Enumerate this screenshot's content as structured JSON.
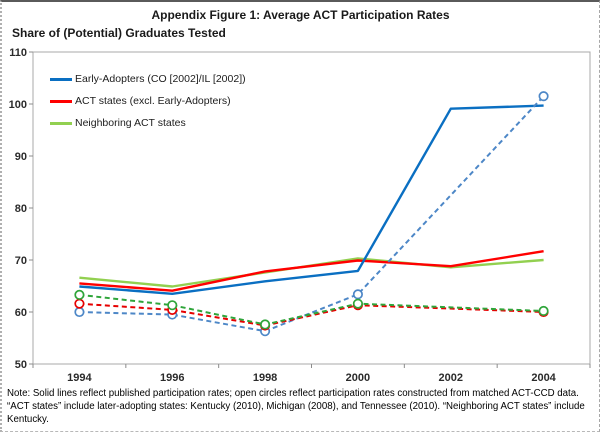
{
  "figure": {
    "title": "Appendix Figure 1: Average ACT Participation Rates",
    "axis_caption": "Share of (Potential) Graduates Tested",
    "notes": [
      "Note: Solid lines reflect published participation rates; open circles reflect participation rates constructed from matched ACT-CCD data.",
      "“ACT states” include later-adopting states: Kentucky (2010), Michigan (2008), and Tennessee (2010). “Neighboring ACT states” include",
      "Kentucky."
    ]
  },
  "chart_data": {
    "type": "line",
    "title": "Appendix Figure 1: Average ACT Participation Rates",
    "ylabel": "Share of (Potential) Graduates Tested",
    "x_categories": [
      "1994",
      "1996",
      "1998",
      "2000",
      "2002",
      "2004"
    ],
    "ylim": [
      50,
      110
    ],
    "yticks": [
      50,
      60,
      70,
      80,
      90,
      100,
      110
    ],
    "grid": false,
    "legend_position": "top-left inside plot area",
    "legend": [
      {
        "label": "Early-Adopters (CO [2002]/IL [2002])",
        "color": "#0a6fc2"
      },
      {
        "label": "ACT states (excl. Early-Adopters)",
        "color": "#ff0000"
      },
      {
        "label": "Neighboring ACT states",
        "color": "#92d050"
      }
    ],
    "series": [
      {
        "name": "early-adopters-published",
        "legend_label": "Early-Adopters (CO [2002]/IL [2002])",
        "line": "solid",
        "marker": "none",
        "color": "#0a6fc2",
        "values": [
          64.9,
          63.5,
          65.9,
          67.9,
          99.1,
          99.7
        ]
      },
      {
        "name": "act-states-published",
        "legend_label": "ACT states (excl. Early-Adopters)",
        "line": "solid",
        "marker": "none",
        "color": "#ff0000",
        "values": [
          65.5,
          64.1,
          67.8,
          69.9,
          68.8,
          71.7
        ]
      },
      {
        "name": "neighboring-act-states-published",
        "legend_label": "Neighboring ACT states",
        "line": "solid",
        "marker": "none",
        "color": "#92d050",
        "values": [
          66.6,
          64.9,
          67.6,
          70.3,
          68.6,
          70.0
        ]
      },
      {
        "name": "early-adopters-constructed-act-ccd",
        "line": "dashed",
        "marker": "open-circle",
        "color": "#4d87c7",
        "values": [
          60.0,
          59.5,
          56.3,
          63.4,
          null,
          101.5
        ]
      },
      {
        "name": "act-states-constructed-act-ccd",
        "line": "dashed",
        "marker": "open-circle",
        "color": "#e60000",
        "values": [
          61.6,
          60.4,
          57.4,
          61.3,
          null,
          60.0
        ]
      },
      {
        "name": "neighboring-act-states-constructed-act-ccd",
        "line": "dashed",
        "marker": "open-circle",
        "color": "#2fa53a",
        "values": [
          63.3,
          61.3,
          57.6,
          61.6,
          null,
          60.2
        ]
      }
    ]
  }
}
